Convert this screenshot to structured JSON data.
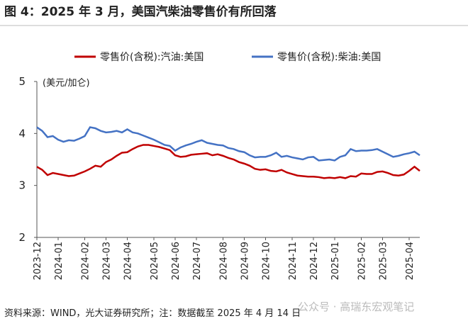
{
  "chart_data": {
    "type": "line",
    "title": "图 4：2025 年 3 月，美国汽柴油零售价有所回落",
    "y_label": "(美元/加仑)",
    "source": "资料来源：WIND，光大证券研究所；注：数据截至 2025 年 4 月 14 日",
    "watermark": "公众号 · 高瑞东宏观笔记",
    "categories": [
      "2023-12",
      null,
      null,
      null,
      "2024-01",
      null,
      null,
      null,
      null,
      "2024-02",
      null,
      null,
      null,
      "2024-03",
      null,
      null,
      null,
      "2024-04",
      null,
      null,
      null,
      null,
      "2024-05",
      null,
      null,
      null,
      "2024-06",
      null,
      null,
      null,
      "2024-07",
      null,
      null,
      null,
      null,
      "2024-08",
      null,
      null,
      null,
      "2024-09",
      null,
      null,
      null,
      "2024-10",
      null,
      null,
      null,
      null,
      "2024-11",
      null,
      null,
      null,
      "2024-12",
      null,
      null,
      null,
      "2025-01",
      null,
      null,
      null,
      null,
      "2025-02",
      null,
      null,
      null,
      "2025-03",
      null,
      null,
      null,
      null,
      "2025-04",
      null,
      null
    ],
    "series": [
      {
        "name": "零售价(含税):汽油:美国",
        "color": "#c00000",
        "values": [
          3.36,
          3.3,
          3.2,
          3.24,
          3.22,
          3.2,
          3.18,
          3.19,
          3.23,
          3.27,
          3.32,
          3.38,
          3.36,
          3.45,
          3.5,
          3.57,
          3.63,
          3.64,
          3.7,
          3.75,
          3.78,
          3.78,
          3.76,
          3.74,
          3.71,
          3.68,
          3.58,
          3.55,
          3.56,
          3.59,
          3.6,
          3.61,
          3.62,
          3.58,
          3.6,
          3.57,
          3.53,
          3.5,
          3.45,
          3.42,
          3.38,
          3.32,
          3.3,
          3.31,
          3.28,
          3.27,
          3.3,
          3.25,
          3.22,
          3.19,
          3.18,
          3.17,
          3.17,
          3.16,
          3.14,
          3.15,
          3.14,
          3.16,
          3.14,
          3.18,
          3.17,
          3.23,
          3.22,
          3.22,
          3.26,
          3.27,
          3.24,
          3.2,
          3.19,
          3.21,
          3.28,
          3.36,
          3.28
        ]
      },
      {
        "name": "零售价(含税):柴油:美国",
        "color": "#4472c4",
        "values": [
          4.12,
          4.05,
          3.93,
          3.95,
          3.88,
          3.84,
          3.87,
          3.86,
          3.9,
          3.95,
          4.12,
          4.1,
          4.05,
          4.02,
          4.03,
          4.05,
          4.02,
          4.08,
          4.02,
          4.0,
          3.96,
          3.92,
          3.88,
          3.83,
          3.78,
          3.76,
          3.67,
          3.73,
          3.77,
          3.8,
          3.84,
          3.87,
          3.82,
          3.8,
          3.78,
          3.77,
          3.72,
          3.7,
          3.66,
          3.64,
          3.58,
          3.54,
          3.55,
          3.55,
          3.58,
          3.63,
          3.55,
          3.57,
          3.54,
          3.52,
          3.5,
          3.54,
          3.55,
          3.48,
          3.49,
          3.5,
          3.48,
          3.55,
          3.58,
          3.7,
          3.66,
          3.67,
          3.67,
          3.68,
          3.7,
          3.65,
          3.6,
          3.55,
          3.57,
          3.6,
          3.62,
          3.65,
          3.58
        ]
      }
    ],
    "ylim": [
      2,
      5
    ],
    "yticks": [
      2,
      3,
      4,
      5
    ],
    "grid": false,
    "legend": "top"
  }
}
